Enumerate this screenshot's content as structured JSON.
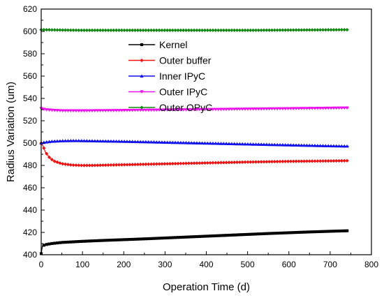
{
  "chart_data": {
    "type": "line",
    "xlabel": "Operation Time (d)",
    "ylabel": "Radius Variation (um)",
    "xlim": [
      0,
      800
    ],
    "ylim": [
      400,
      620
    ],
    "xticks": [
      0,
      100,
      200,
      300,
      400,
      500,
      600,
      700,
      800
    ],
    "yticks": [
      400,
      420,
      440,
      460,
      480,
      500,
      520,
      540,
      560,
      580,
      600,
      620
    ],
    "grid": false,
    "legend_position": "top-center",
    "series": [
      {
        "name": "Kernel",
        "color": "#000000",
        "marker": "square",
        "x": [
          0,
          3,
          10,
          25,
          50,
          75,
          100,
          150,
          200,
          250,
          300,
          350,
          400,
          450,
          500,
          550,
          600,
          650,
          700,
          745
        ],
        "y": [
          401,
          408,
          409,
          410,
          411,
          411.5,
          412,
          412.8,
          413.5,
          414.2,
          415,
          415.8,
          416.6,
          417.4,
          418.2,
          419,
          419.7,
          420.4,
          421,
          421.5
        ]
      },
      {
        "name": "Outer  buffer",
        "color": "#ee1111",
        "marker": "diamond",
        "x": [
          0,
          5,
          10,
          20,
          30,
          50,
          75,
          100,
          125,
          150,
          200,
          250,
          300,
          350,
          400,
          450,
          500,
          550,
          600,
          650,
          700,
          745
        ],
        "y": [
          500,
          497,
          492,
          487,
          484,
          481.5,
          480.3,
          480,
          480,
          480.2,
          480.6,
          481,
          481.4,
          481.8,
          482.2,
          482.6,
          483,
          483.3,
          483.6,
          483.8,
          484,
          484.2
        ]
      },
      {
        "name": "Inner  IPyC",
        "color": "#1111ee",
        "marker": "triangle-up",
        "x": [
          0,
          10,
          25,
          50,
          75,
          100,
          150,
          200,
          250,
          300,
          350,
          400,
          450,
          500,
          550,
          600,
          650,
          700,
          745
        ],
        "y": [
          500,
          500.8,
          501.5,
          502,
          502.2,
          502.1,
          501.8,
          501.5,
          501.1,
          500.7,
          500.3,
          499.9,
          499.5,
          499.1,
          498.7,
          498.3,
          497.9,
          497.5,
          497.2
        ]
      },
      {
        "name": "Outer IPyC",
        "color": "#ee11ee",
        "marker": "triangle-down",
        "x": [
          0,
          10,
          25,
          50,
          100,
          150,
          200,
          250,
          300,
          350,
          400,
          450,
          500,
          550,
          600,
          650,
          700,
          745
        ],
        "y": [
          531,
          530,
          529.5,
          529,
          529,
          529.1,
          529.3,
          529.5,
          529.7,
          529.9,
          530.1,
          530.3,
          530.5,
          530.7,
          530.9,
          531.1,
          531.3,
          531.5
        ]
      },
      {
        "name": "Outer  OPyC",
        "color": "#118811",
        "marker": "diamond",
        "x": [
          0,
          50,
          100,
          150,
          200,
          250,
          300,
          350,
          400,
          450,
          500,
          550,
          600,
          650,
          700,
          745
        ],
        "y": [
          601.5,
          601.2,
          601,
          601,
          601,
          601,
          601,
          601,
          601,
          601,
          601,
          601.1,
          601.2,
          601.3,
          601.4,
          601.5
        ]
      }
    ]
  }
}
